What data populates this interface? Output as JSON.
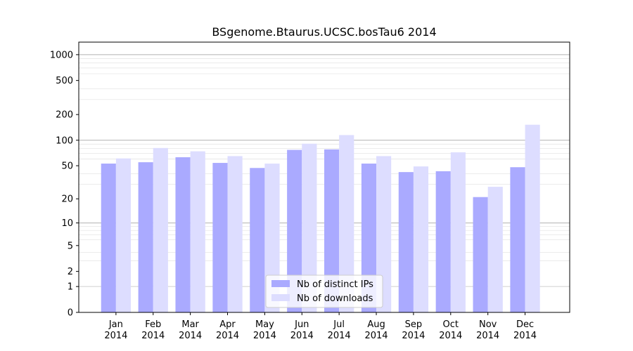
{
  "chart_data": {
    "type": "bar",
    "title": "BSgenome.Btaurus.UCSC.bosTau6 2014",
    "xlabel": "",
    "ylabel": "",
    "scale": "log(1+y)",
    "ylim": [
      0,
      1400
    ],
    "yticks": [
      0,
      1,
      2,
      5,
      10,
      20,
      50,
      100,
      200,
      500,
      1000
    ],
    "ytick_labels": [
      "0",
      "1",
      "2",
      "5",
      "10",
      "20",
      "50",
      "100",
      "200",
      "500",
      "1000"
    ],
    "categories": [
      [
        "Jan",
        "2014"
      ],
      [
        "Feb",
        "2014"
      ],
      [
        "Mar",
        "2014"
      ],
      [
        "Apr",
        "2014"
      ],
      [
        "May",
        "2014"
      ],
      [
        "Jun",
        "2014"
      ],
      [
        "Jul",
        "2014"
      ],
      [
        "Aug",
        "2014"
      ],
      [
        "Sep",
        "2014"
      ],
      [
        "Oct",
        "2014"
      ],
      [
        "Nov",
        "2014"
      ],
      [
        "Dec",
        "2014"
      ]
    ],
    "series": [
      {
        "name": "Nb of distinct IPs",
        "color": "#aaaaff",
        "values": [
          53,
          55,
          63,
          54,
          47,
          77,
          78,
          53,
          42,
          43,
          21,
          48
        ]
      },
      {
        "name": "Nb of downloads",
        "color": "#ddddff",
        "values": [
          61,
          81,
          74,
          65,
          53,
          91,
          115,
          65,
          49,
          72,
          28,
          152
        ]
      }
    ],
    "grid": true,
    "legend_position": "lower center"
  }
}
